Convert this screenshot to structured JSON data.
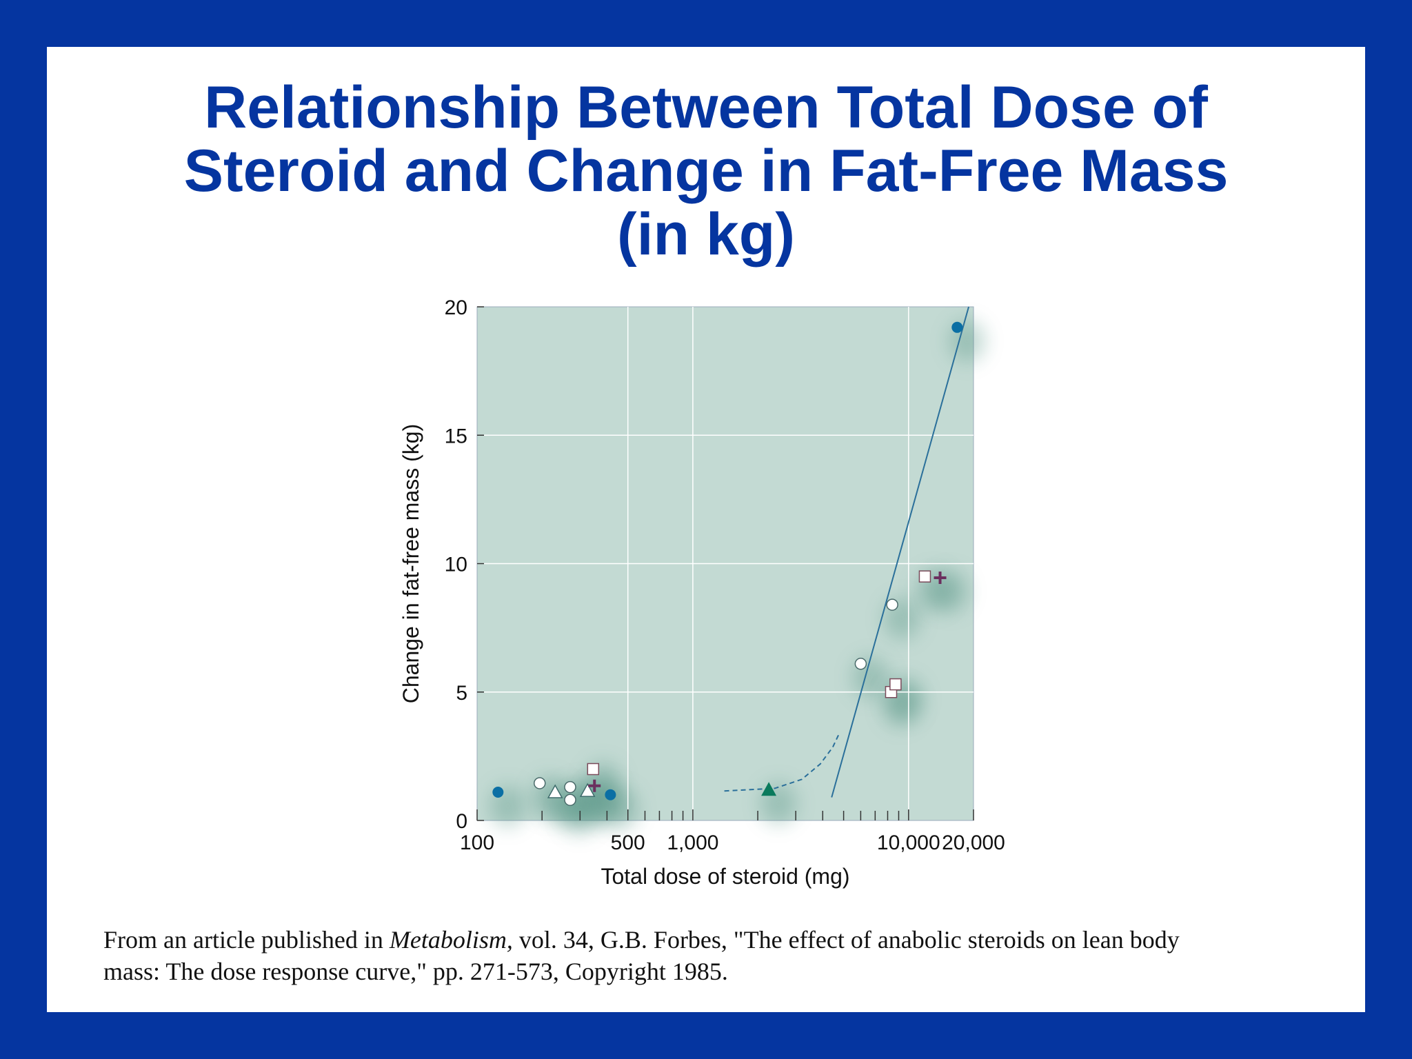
{
  "title_lines": [
    "Relationship Between Total Dose of",
    "Steroid and Change in Fat-Free Mass",
    "(in kg)"
  ],
  "colors": {
    "frame": "#0535a0",
    "title": "#0535a0",
    "plot_bg": "#c3dad3",
    "grid": "#ffffff",
    "line": "#2a6f9a",
    "circle_filled": "#0b6fa4",
    "triangle_filled": "#0a7a5c",
    "plus": "#6b2f5e",
    "square_edge": "#7a4a5a"
  },
  "chart_data": {
    "type": "scatter",
    "xlabel": "Total dose of steroid (mg)",
    "ylabel": "Change in fat-free mass (kg)",
    "xscale": "log",
    "xlim": [
      100,
      20000
    ],
    "ylim": [
      0,
      20
    ],
    "xticks": [
      {
        "value": 100,
        "label": "100"
      },
      {
        "value": 500,
        "label": "500"
      },
      {
        "value": 1000,
        "label": "1,000"
      },
      {
        "value": 10000,
        "label": "10,000"
      },
      {
        "value": 20000,
        "label": "20,000"
      }
    ],
    "yticks": [
      {
        "value": 0,
        "label": "0"
      },
      {
        "value": 5,
        "label": "5"
      },
      {
        "value": 10,
        "label": "10"
      },
      {
        "value": 15,
        "label": "15"
      },
      {
        "value": 20,
        "label": "20"
      }
    ],
    "minor_xticks": [
      200,
      300,
      400,
      600,
      700,
      800,
      900,
      2000,
      3000,
      4000,
      5000,
      6000,
      7000,
      8000,
      9000
    ],
    "grid": true,
    "grid_x": [
      500,
      1000,
      10000
    ],
    "grid_y": [
      5,
      10,
      15
    ],
    "series": [
      {
        "marker": "circle-filled",
        "points": [
          [
            125,
            1.1
          ],
          [
            415,
            1.0
          ],
          [
            16800,
            19.2
          ]
        ]
      },
      {
        "marker": "circle-open",
        "points": [
          [
            195,
            1.45
          ],
          [
            270,
            1.3
          ],
          [
            270,
            0.8
          ],
          [
            6000,
            6.1
          ],
          [
            8400,
            8.4
          ]
        ]
      },
      {
        "marker": "triangle-open",
        "points": [
          [
            230,
            1.1
          ],
          [
            325,
            1.15
          ]
        ]
      },
      {
        "marker": "square-open",
        "points": [
          [
            345,
            2.0
          ],
          [
            8300,
            5.0
          ],
          [
            8700,
            5.3
          ],
          [
            11900,
            9.5
          ]
        ]
      },
      {
        "marker": "plus",
        "points": [
          [
            350,
            1.35
          ],
          [
            14000,
            9.45
          ]
        ]
      },
      {
        "marker": "triangle-filled",
        "points": [
          [
            2250,
            1.2
          ]
        ]
      }
    ],
    "fit_line": {
      "style": "solid",
      "points": [
        [
          4400,
          0.9
        ],
        [
          19000,
          20
        ]
      ]
    },
    "fit_curve": {
      "style": "dashed",
      "points": [
        [
          1400,
          1.15
        ],
        [
          2400,
          1.25
        ],
        [
          3200,
          1.6
        ],
        [
          3900,
          2.2
        ],
        [
          4450,
          2.85
        ],
        [
          4750,
          3.35
        ]
      ]
    }
  },
  "citation": {
    "line1_before": "From an article published in ",
    "journal": "Metabolism,",
    "line1_after": " vol. 34, G.B. Forbes, \"The effect of anabolic steroids on lean body",
    "line2": "mass: The dose response curve,\" pp. 271-573, Copyright 1985."
  }
}
